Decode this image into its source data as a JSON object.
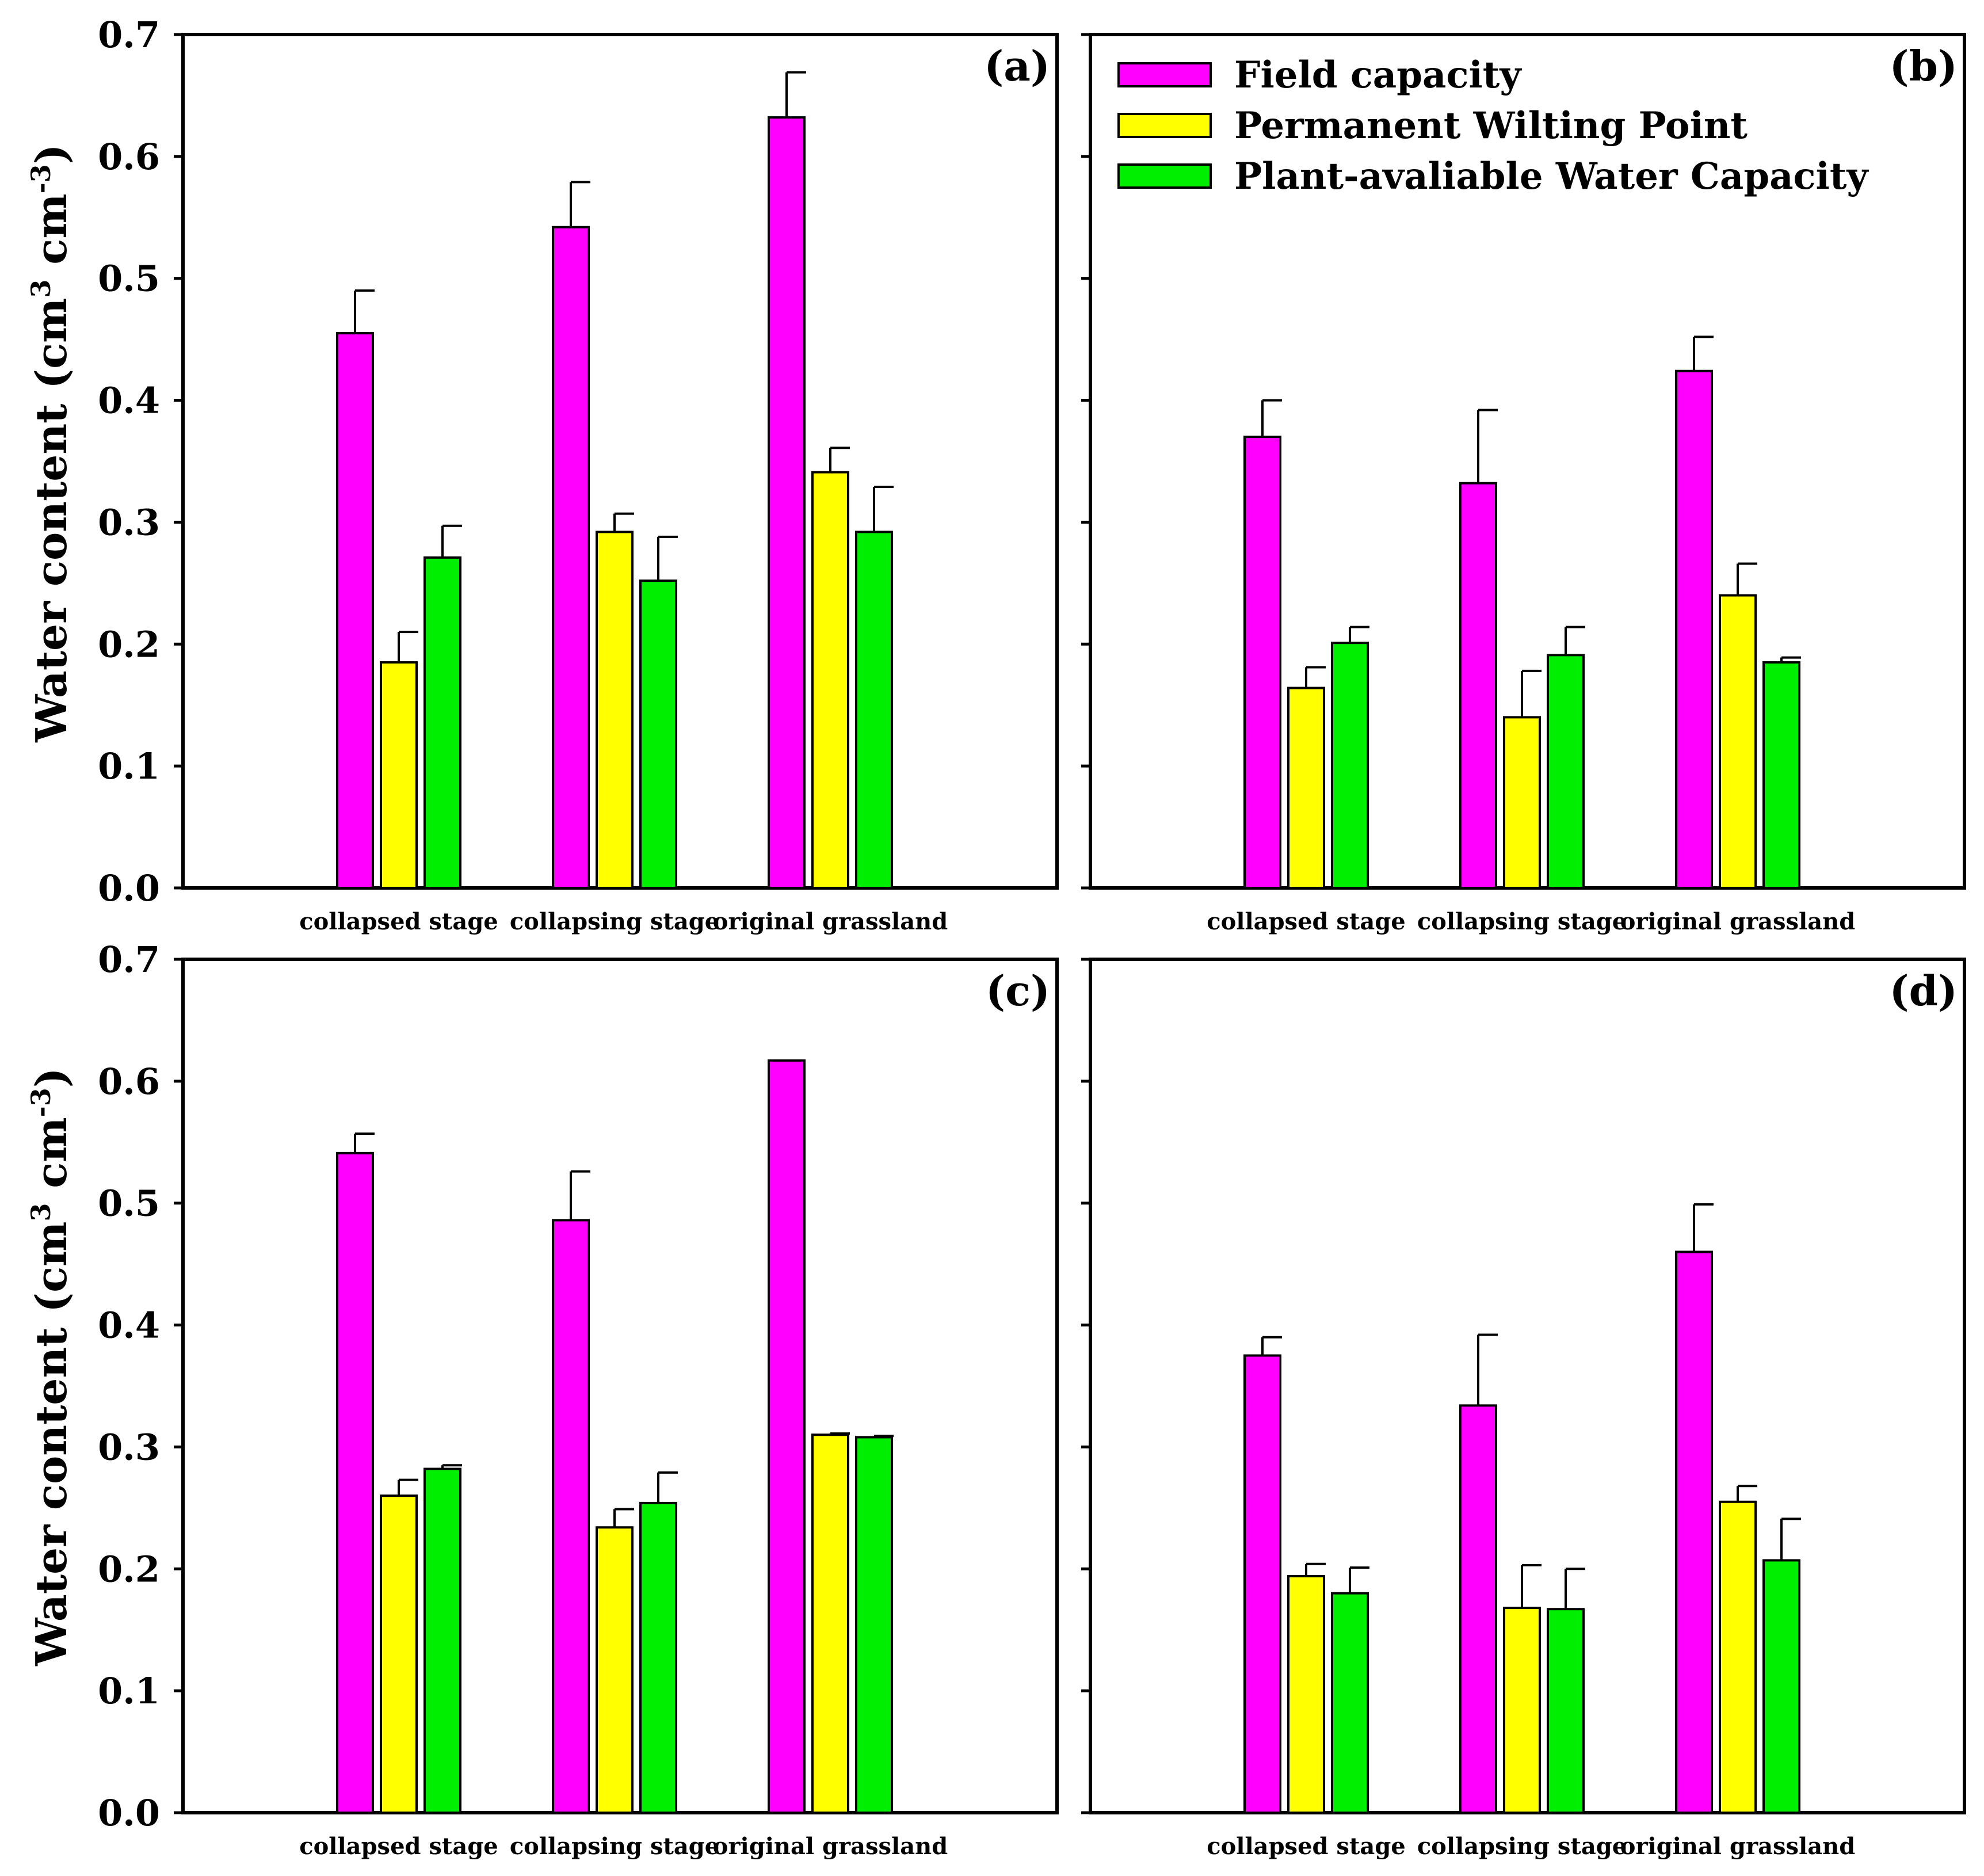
{
  "figure": {
    "ylabel": {
      "main": "Water content (cm",
      "sup1": "3",
      "mid": " cm",
      "sup2": "-3",
      "end": ")"
    }
  },
  "legend": {
    "items": [
      {
        "label": "Field capacity",
        "color": "#ff00ff"
      },
      {
        "label": "Permanent Wilting Point",
        "color": "#ffff00"
      },
      {
        "label": "Plant-avaliable Water Capacity",
        "color": "#00ee00"
      }
    ]
  },
  "chart_data": [
    {
      "panel": "(a)",
      "type": "bar",
      "categories": [
        "collapsed stage",
        "collapsing stage",
        "original grassland"
      ],
      "ylim": [
        0,
        0.7
      ],
      "yticks": [
        "0.0",
        "0.1",
        "0.2",
        "0.3",
        "0.4",
        "0.5",
        "0.6",
        "0.7"
      ],
      "series": [
        {
          "name": "Field capacity",
          "values": [
            0.455,
            0.542,
            0.632
          ],
          "errors": [
            0.035,
            0.037,
            0.037
          ]
        },
        {
          "name": "Permanent Wilting Point",
          "values": [
            0.185,
            0.292,
            0.341
          ],
          "errors": [
            0.025,
            0.015,
            0.02
          ]
        },
        {
          "name": "Plant-avaliable Water Capacity",
          "values": [
            0.271,
            0.252,
            0.292
          ],
          "errors": [
            0.026,
            0.036,
            0.037
          ]
        }
      ]
    },
    {
      "panel": "(b)",
      "type": "bar",
      "categories": [
        "collapsed stage",
        "collapsing stage",
        "original grassland"
      ],
      "ylim": [
        0,
        0.7
      ],
      "series": [
        {
          "name": "Field capacity",
          "values": [
            0.37,
            0.332,
            0.424
          ],
          "errors": [
            0.03,
            0.06,
            0.028
          ]
        },
        {
          "name": "Permanent Wilting Point",
          "values": [
            0.164,
            0.14,
            0.24
          ],
          "errors": [
            0.017,
            0.038,
            0.026
          ]
        },
        {
          "name": "Plant-avaliable Water Capacity",
          "values": [
            0.201,
            0.191,
            0.185
          ],
          "errors": [
            0.013,
            0.023,
            0.004
          ]
        }
      ]
    },
    {
      "panel": "(c)",
      "type": "bar",
      "categories": [
        "collapsed stage",
        "collapsing stage",
        "original grassland"
      ],
      "ylim": [
        0,
        0.7
      ],
      "yticks": [
        "0.0",
        "0.1",
        "0.2",
        "0.3",
        "0.4",
        "0.5",
        "0.6",
        "0.7"
      ],
      "series": [
        {
          "name": "Field capacity",
          "values": [
            0.541,
            0.486,
            0.617
          ],
          "errors": [
            0.016,
            0.04,
            0.0
          ]
        },
        {
          "name": "Permanent Wilting Point",
          "values": [
            0.26,
            0.234,
            0.31
          ],
          "errors": [
            0.013,
            0.015,
            0.001
          ]
        },
        {
          "name": "Plant-avaliable Water Capacity",
          "values": [
            0.282,
            0.254,
            0.308
          ],
          "errors": [
            0.003,
            0.025,
            0.001
          ]
        }
      ]
    },
    {
      "panel": "(d)",
      "type": "bar",
      "categories": [
        "collapsed stage",
        "collapsing stage",
        "original grassland"
      ],
      "ylim": [
        0,
        0.7
      ],
      "series": [
        {
          "name": "Field capacity",
          "values": [
            0.375,
            0.334,
            0.46
          ],
          "errors": [
            0.015,
            0.058,
            0.039
          ]
        },
        {
          "name": "Permanent Wilting Point",
          "values": [
            0.194,
            0.168,
            0.255
          ],
          "errors": [
            0.01,
            0.035,
            0.013
          ]
        },
        {
          "name": "Plant-avaliable Water Capacity",
          "values": [
            0.18,
            0.167,
            0.207
          ],
          "errors": [
            0.021,
            0.033,
            0.034
          ]
        }
      ]
    }
  ]
}
